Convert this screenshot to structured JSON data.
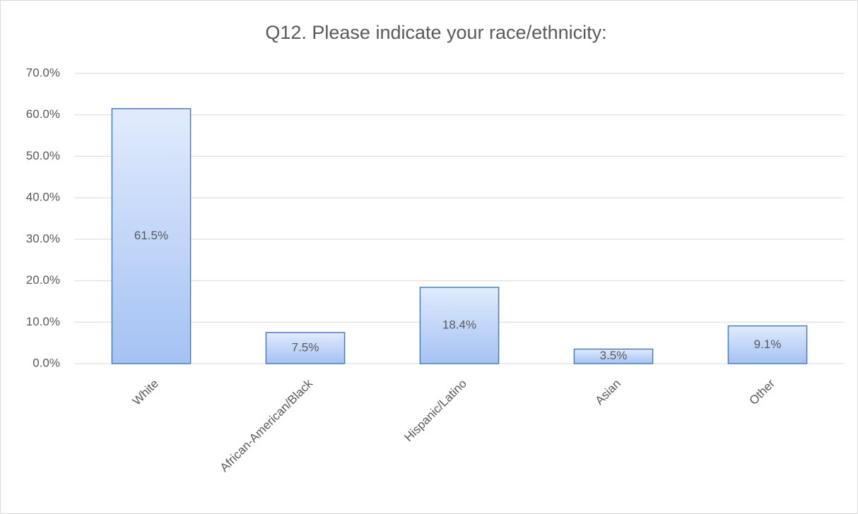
{
  "chart_data": {
    "type": "bar",
    "title": "Q12. Please indicate your race/ethnicity:",
    "categories": [
      "White",
      "African-American/Black",
      "Hispanic/Latino",
      "Asian",
      "Other"
    ],
    "values": [
      61.5,
      7.5,
      18.4,
      3.5,
      9.1
    ],
    "value_labels": [
      "61.5%",
      "7.5%",
      "18.4%",
      "3.5%",
      "9.1%"
    ],
    "color": "#a4c2f4",
    "ylim": [
      0,
      70
    ],
    "yticks": [
      {
        "value": 0,
        "label": "0.0%"
      },
      {
        "value": 10,
        "label": "10.0%"
      },
      {
        "value": 20,
        "label": "20.0%"
      },
      {
        "value": 30,
        "label": "30.0%"
      },
      {
        "value": 40,
        "label": "40.0%"
      },
      {
        "value": 50,
        "label": "50.0%"
      },
      {
        "value": 60,
        "label": "60.0%"
      },
      {
        "value": 70,
        "label": "70.0%"
      }
    ],
    "grid": true
  }
}
